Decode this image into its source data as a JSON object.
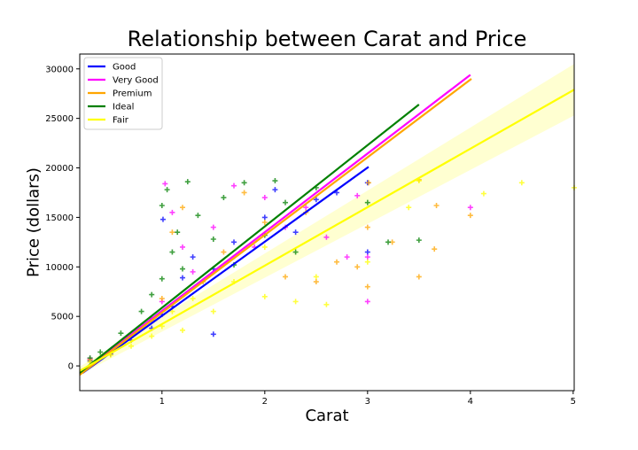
{
  "chart_data": {
    "type": "scatter",
    "title": "Relationship between Carat and Price",
    "xlabel": "Carat",
    "ylabel": "Price (dollars)",
    "xlim": [
      0.2,
      5.01
    ],
    "ylim": [
      -2500,
      31500
    ],
    "xticks": [
      1,
      2,
      3,
      4,
      5
    ],
    "yticks": [
      0,
      5000,
      10000,
      15000,
      20000,
      25000,
      30000
    ],
    "grid": false,
    "legend": "top-left",
    "marker": "+",
    "series": [
      {
        "name": "Good",
        "color": "#0000ff",
        "fit": {
          "x": [
            0.23,
            3.01
          ],
          "y": [
            -700,
            20100
          ]
        },
        "points": [
          [
            0.3,
            500
          ],
          [
            0.5,
            1200
          ],
          [
            0.7,
            2600
          ],
          [
            0.9,
            3800
          ],
          [
            1.0,
            5200
          ],
          [
            1.01,
            14800
          ],
          [
            1.1,
            6000
          ],
          [
            1.2,
            8900
          ],
          [
            1.3,
            11000
          ],
          [
            1.5,
            3200
          ],
          [
            1.5,
            9800
          ],
          [
            1.7,
            12500
          ],
          [
            2.0,
            15000
          ],
          [
            2.1,
            17800
          ],
          [
            2.3,
            13500
          ],
          [
            2.5,
            16800
          ],
          [
            2.7,
            17500
          ],
          [
            3.0,
            11500
          ],
          [
            3.0,
            18500
          ]
        ]
      },
      {
        "name": "Very Good",
        "color": "#ff00ff",
        "fit": {
          "x": [
            0.2,
            4.0
          ],
          "y": [
            -800,
            29400
          ]
        },
        "points": [
          [
            0.3,
            700
          ],
          [
            0.5,
            1500
          ],
          [
            0.7,
            3000
          ],
          [
            0.9,
            4800
          ],
          [
            1.0,
            6500
          ],
          [
            1.03,
            18400
          ],
          [
            1.1,
            15500
          ],
          [
            1.2,
            12000
          ],
          [
            1.3,
            9500
          ],
          [
            1.5,
            14000
          ],
          [
            1.7,
            18200
          ],
          [
            1.9,
            12000
          ],
          [
            2.0,
            17000
          ],
          [
            2.2,
            14000
          ],
          [
            2.4,
            16000
          ],
          [
            2.6,
            13000
          ],
          [
            2.8,
            11000
          ],
          [
            2.9,
            17200
          ],
          [
            3.0,
            6500
          ],
          [
            3.0,
            11000
          ],
          [
            4.0,
            16000
          ]
        ]
      },
      {
        "name": "Premium",
        "color": "#ffa500",
        "fit": {
          "x": [
            0.2,
            4.01
          ],
          "y": [
            -900,
            29000
          ]
        },
        "points": [
          [
            0.3,
            600
          ],
          [
            0.5,
            1300
          ],
          [
            0.7,
            2900
          ],
          [
            0.9,
            4600
          ],
          [
            1.0,
            6800
          ],
          [
            1.1,
            13500
          ],
          [
            1.2,
            16000
          ],
          [
            1.4,
            8500
          ],
          [
            1.6,
            11500
          ],
          [
            1.8,
            17500
          ],
          [
            2.0,
            14500
          ],
          [
            2.2,
            9000
          ],
          [
            2.4,
            15500
          ],
          [
            2.5,
            8500
          ],
          [
            2.7,
            10500
          ],
          [
            2.9,
            10000
          ],
          [
            3.0,
            8000
          ],
          [
            3.0,
            14000
          ],
          [
            3.01,
            18500
          ],
          [
            3.24,
            12500
          ],
          [
            3.5,
            9000
          ],
          [
            3.5,
            18800
          ],
          [
            3.67,
            16200
          ],
          [
            3.65,
            11800
          ],
          [
            4.0,
            15200
          ]
        ]
      },
      {
        "name": "Ideal",
        "color": "#008000",
        "fit": {
          "x": [
            0.2,
            3.5
          ],
          "y": [
            -700,
            26400
          ]
        },
        "points": [
          [
            0.3,
            800
          ],
          [
            0.4,
            1400
          ],
          [
            0.6,
            3300
          ],
          [
            0.8,
            5500
          ],
          [
            0.9,
            7200
          ],
          [
            1.0,
            8800
          ],
          [
            1.0,
            16200
          ],
          [
            1.05,
            17800
          ],
          [
            1.1,
            11500
          ],
          [
            1.15,
            13500
          ],
          [
            1.2,
            9800
          ],
          [
            1.25,
            18600
          ],
          [
            1.35,
            15200
          ],
          [
            1.5,
            12800
          ],
          [
            1.6,
            17000
          ],
          [
            1.7,
            10200
          ],
          [
            1.8,
            18500
          ],
          [
            2.0,
            13200
          ],
          [
            2.1,
            18700
          ],
          [
            2.2,
            16500
          ],
          [
            2.3,
            11500
          ],
          [
            2.5,
            18000
          ],
          [
            3.0,
            16500
          ],
          [
            3.2,
            12500
          ],
          [
            3.5,
            12700
          ]
        ]
      },
      {
        "name": "Fair",
        "color": "#ffff00",
        "fit": {
          "x": [
            0.2,
            5.01
          ],
          "y": [
            -500,
            27900
          ]
        },
        "points": [
          [
            0.3,
            400
          ],
          [
            0.5,
            1100
          ],
          [
            0.7,
            2000
          ],
          [
            0.9,
            3000
          ],
          [
            1.0,
            4000
          ],
          [
            1.1,
            5500
          ],
          [
            1.2,
            3600
          ],
          [
            1.3,
            6800
          ],
          [
            1.5,
            5500
          ],
          [
            1.7,
            8500
          ],
          [
            2.0,
            7000
          ],
          [
            2.0,
            12000
          ],
          [
            2.3,
            6500
          ],
          [
            2.5,
            9000
          ],
          [
            2.6,
            6200
          ],
          [
            3.0,
            10500
          ],
          [
            3.4,
            16000
          ],
          [
            3.5,
            18700
          ],
          [
            4.13,
            17400
          ],
          [
            4.5,
            18500
          ],
          [
            5.01,
            18000
          ]
        ]
      }
    ]
  }
}
